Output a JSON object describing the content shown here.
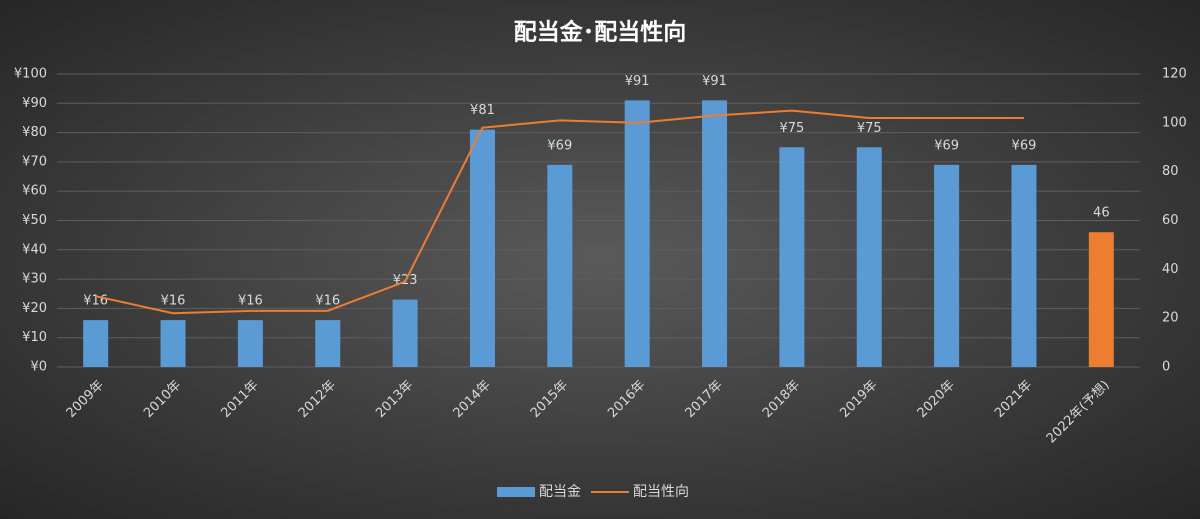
{
  "chart_data": {
    "type": "bar-line",
    "title": "配当金･配当性向",
    "categories": [
      "2009年",
      "2010年",
      "2011年",
      "2012年",
      "2013年",
      "2014年",
      "2015年",
      "2016年",
      "2017年",
      "2018年",
      "2019年",
      "2020年",
      "2021年",
      "2022年(予想)"
    ],
    "series": [
      {
        "name": "配当金",
        "type": "bar",
        "color": "#5b9bd5",
        "colors": [
          "#5b9bd5",
          "#5b9bd5",
          "#5b9bd5",
          "#5b9bd5",
          "#5b9bd5",
          "#5b9bd5",
          "#5b9bd5",
          "#5b9bd5",
          "#5b9bd5",
          "#5b9bd5",
          "#5b9bd5",
          "#5b9bd5",
          "#5b9bd5",
          "#ed7d31"
        ],
        "values": [
          16,
          16,
          16,
          16,
          23,
          81,
          69,
          91,
          91,
          75,
          75,
          69,
          69,
          46
        ],
        "value_labels": [
          "¥16",
          "¥16",
          "¥16",
          "¥16",
          "¥23",
          "¥81",
          "¥69",
          "¥91",
          "¥91",
          "¥75",
          "¥75",
          "¥69",
          "¥69",
          "46"
        ]
      },
      {
        "name": "配当性向",
        "type": "line",
        "axis": "y2",
        "color": "#ed7d31",
        "values": [
          29,
          22,
          23,
          23,
          35,
          98,
          101,
          100,
          103,
          105,
          102,
          102,
          102,
          null
        ]
      }
    ],
    "ylim": [
      0,
      100
    ],
    "yticks": [
      {
        "value": 0,
        "label": "¥0"
      },
      {
        "value": 10,
        "label": "¥10"
      },
      {
        "value": 20,
        "label": "¥20"
      },
      {
        "value": 30,
        "label": "¥30"
      },
      {
        "value": 40,
        "label": "¥40"
      },
      {
        "value": 50,
        "label": "¥50"
      },
      {
        "value": 60,
        "label": "¥60"
      },
      {
        "value": 70,
        "label": "¥70"
      },
      {
        "value": 80,
        "label": "¥80"
      },
      {
        "value": 90,
        "label": "¥90"
      },
      {
        "value": 100,
        "label": "¥100"
      }
    ],
    "y2lim": [
      0,
      120
    ],
    "y2ticks": [
      0,
      20,
      40,
      60,
      80,
      100,
      120
    ],
    "grid": true,
    "legend": "bottom"
  }
}
